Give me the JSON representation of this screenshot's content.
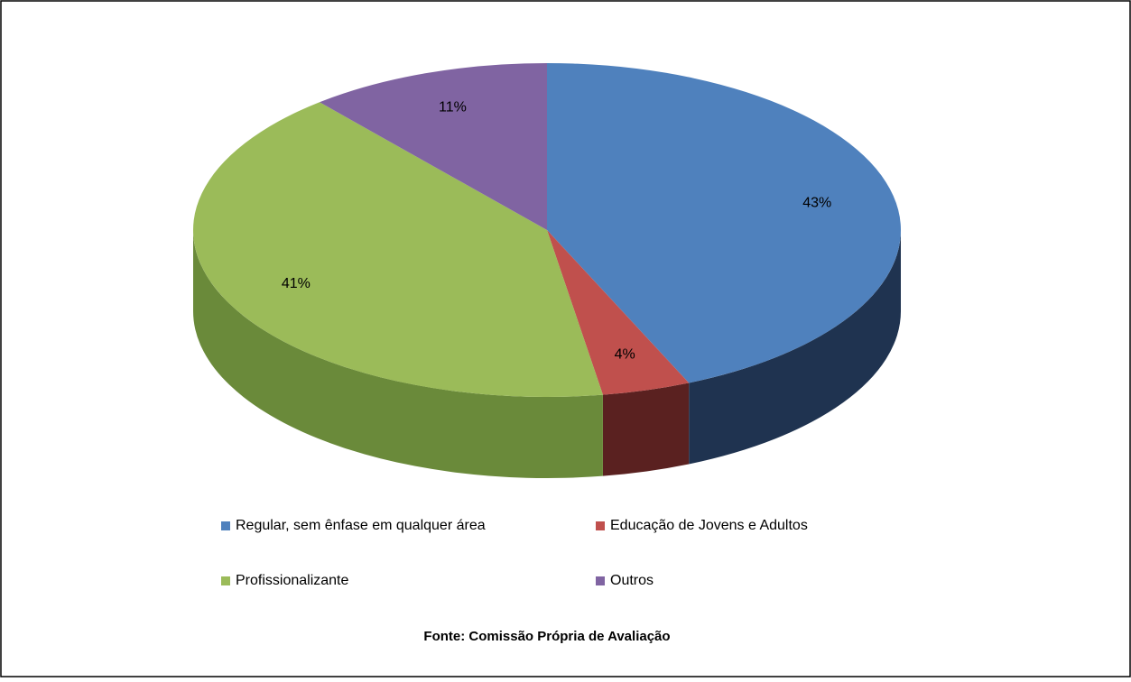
{
  "chart_data": {
    "type": "pie",
    "categories": [
      "Regular, sem ênfase em qualquer área",
      "Educação de Jovens e Adultos",
      "Profissionalizante",
      "Outros"
    ],
    "values": [
      43,
      4,
      41,
      11
    ],
    "value_labels": [
      "43%",
      "4%",
      "41%",
      "11%"
    ],
    "colors": [
      "#4f81bd",
      "#c0504d",
      "#9bbb59",
      "#8064a2"
    ],
    "side_colors": [
      "#1f3350",
      "#5a2120",
      "#6a8a3a",
      "#4d3c63"
    ],
    "legend": "bottom",
    "source": "Fonte: Comissão Própria de Avaliação"
  }
}
